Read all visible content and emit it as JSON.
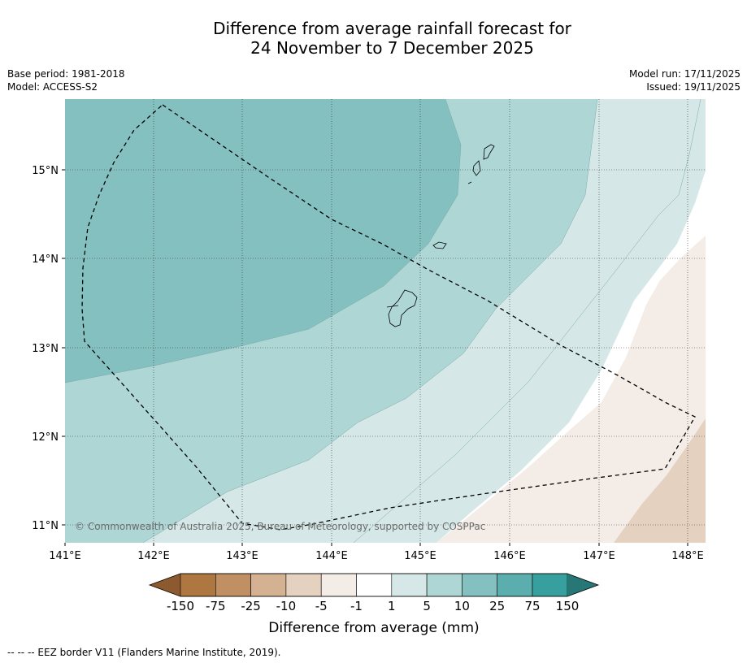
{
  "title": {
    "line1": "Difference from average rainfall forecast for",
    "line2": "24 November to 7 December 2025"
  },
  "meta": {
    "base_period": "Base period: 1981-2018",
    "model": "Model: ACCESS-S2",
    "model_run": "Model run: 17/11/2025",
    "issued": "Issued: 19/11/2025"
  },
  "axes": {
    "lon_ticks": [
      "141°E",
      "142°E",
      "143°E",
      "144°E",
      "145°E",
      "146°E",
      "147°E",
      "148°E"
    ],
    "lat_ticks": [
      "15°N",
      "14°N",
      "13°N",
      "12°N",
      "11°N"
    ]
  },
  "copyright": "© Commonwealth of Australia 2025, Bureau of Meteorology, supported by COSPPac",
  "colorbar": {
    "labels": [
      "-150",
      "-75",
      "-25",
      "-10",
      "-5",
      "-1",
      "1",
      "5",
      "10",
      "25",
      "75",
      "150"
    ],
    "colors": [
      "#8c5a2e",
      "#ae7641",
      "#c09064",
      "#d4b193",
      "#e4d1c0",
      "#f4ece6",
      "#ffffff",
      "#d5e8e7",
      "#aed6d5",
      "#85c0c0",
      "#5caeae",
      "#37a09f",
      "#277777"
    ],
    "title": "Difference from average (mm)"
  },
  "legend_note": "--  --  -- EEZ border V11 (Flanders Marine Institute, 2019)."
}
